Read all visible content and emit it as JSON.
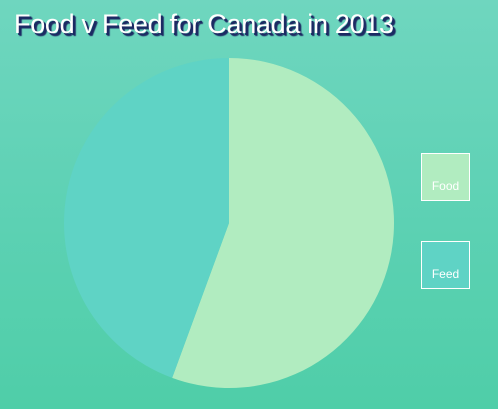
{
  "chart_data": {
    "type": "pie",
    "title": "Food v Feed for Canada in 2013",
    "series": [
      {
        "name": "Food",
        "value": 55.6,
        "color": "#b1ecc0"
      },
      {
        "name": "Feed",
        "value": 44.4,
        "color": "#5fd3c5"
      }
    ],
    "legend_position": "right"
  }
}
